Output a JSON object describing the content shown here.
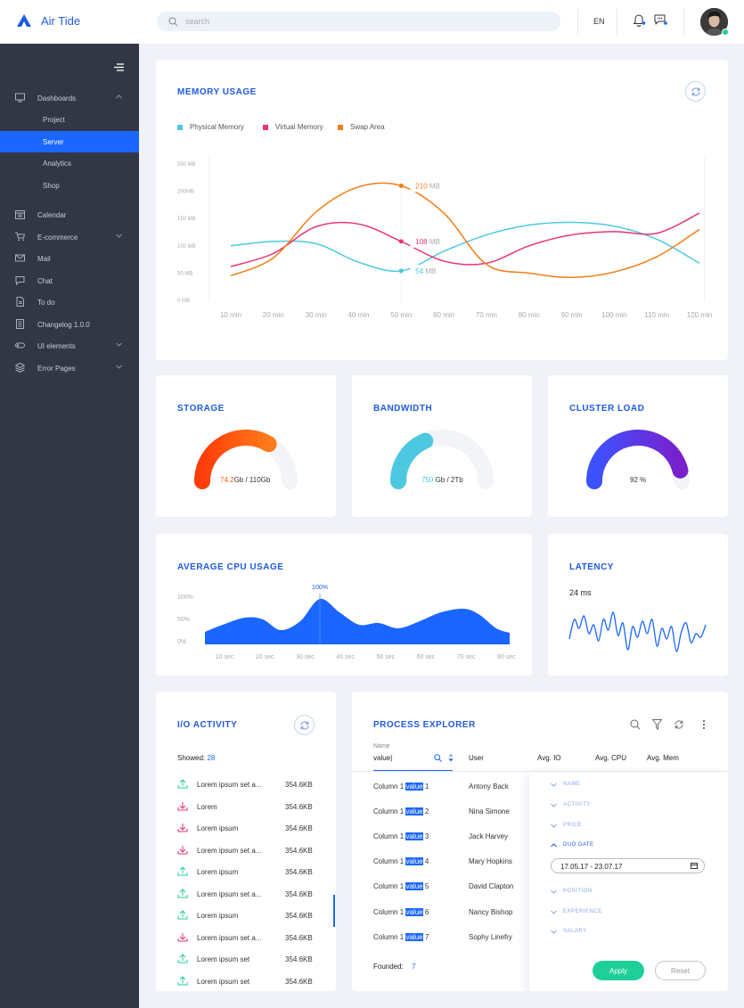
{
  "app": {
    "name": "Air Tide"
  },
  "header": {
    "search_placeholder": "search",
    "language": "EN"
  },
  "sidebar": {
    "items": [
      {
        "label": "Dashboards",
        "icon": "monitor-icon",
        "expandable": true
      },
      {
        "label": "Calendar",
        "icon": "calendar-icon"
      },
      {
        "label": "E-commerce",
        "icon": "cart-icon",
        "expandable": true
      },
      {
        "label": "Mail",
        "icon": "mail-icon"
      },
      {
        "label": "Chat",
        "icon": "chat-icon"
      },
      {
        "label": "To do",
        "icon": "document-icon"
      },
      {
        "label": "Changelog 1.0.0",
        "icon": "list-icon"
      },
      {
        "label": "UI elements",
        "icon": "toggle-icon",
        "expandable": true
      },
      {
        "label": "Error Pages",
        "icon": "layers-icon",
        "expandable": true
      }
    ],
    "dashboard_sub": [
      "Project",
      "Server",
      "Analytics",
      "Shop"
    ],
    "active_sub": "Server"
  },
  "memory": {
    "title": "MEMORY USAGE",
    "legend": [
      {
        "name": "Physical Memory",
        "color": "#4cc9e0"
      },
      {
        "name": "Virtual Memory",
        "color": "#e8337a"
      },
      {
        "name": "Swap Area",
        "color": "#f07f16"
      }
    ],
    "chart_data": {
      "type": "line",
      "x": [
        "10 min",
        "20 min",
        "30 min",
        "40 min",
        "50 min",
        "60 min",
        "70 min",
        "80 min",
        "90 min",
        "100 min",
        "110 min",
        "120 min"
      ],
      "y_ticks": [
        "250 MB",
        "200MB",
        "150 MB",
        "100 MB",
        "50 MB",
        "0 MB"
      ],
      "ylim": [
        0,
        250
      ],
      "series": [
        {
          "name": "Physical Memory",
          "color": "#4cc9e0",
          "values": [
            100,
            108,
            104,
            70,
            54,
            90,
            120,
            138,
            143,
            136,
            112,
            68
          ]
        },
        {
          "name": "Virtual Memory",
          "color": "#e8337a",
          "values": [
            62,
            86,
            135,
            140,
            108,
            72,
            68,
            100,
            120,
            126,
            123,
            160
          ]
        },
        {
          "name": "Swap Area",
          "color": "#f07f16",
          "values": [
            45,
            78,
            162,
            208,
            210,
            160,
            66,
            50,
            42,
            52,
            80,
            130
          ]
        }
      ],
      "annotations": [
        {
          "series": "Swap Area",
          "x": "50 min",
          "value": "210",
          "unit": "MB"
        },
        {
          "series": "Virtual Memory",
          "x": "50 min",
          "value": "108",
          "unit": "MB"
        },
        {
          "series": "Physical Memory",
          "x": "50 min",
          "value": "54",
          "unit": "MB"
        }
      ]
    }
  },
  "storage": {
    "title": "STORAGE",
    "value": "74.2",
    "rest": "Gb / 110Gb",
    "fraction": 0.675,
    "color_from": "#ff3d0a",
    "color_to": "#ff7a1a"
  },
  "bandwidth": {
    "title": "BANDWIDTH",
    "value": "750",
    "rest": " Gb / 2Tb",
    "fraction": 0.375,
    "color": "#4cc9e0"
  },
  "cluster": {
    "title": "CLUSTER LOAD",
    "label": "92 %",
    "fraction": 0.92,
    "color_from": "#3d52ff",
    "color_to": "#7a1fcc"
  },
  "cpu": {
    "title": "AVERAGE CPU USAGE",
    "peak_label": "100%",
    "chart_data": {
      "type": "area",
      "x": [
        "10 sec",
        "20 sec",
        "30 sec",
        "40 sec",
        "50 sec",
        "60 sec",
        "70 sec",
        "80 sec"
      ],
      "y_ticks": [
        "100%",
        "50%",
        "0%"
      ],
      "ylim": [
        0,
        100
      ],
      "color": "#1a66ff"
    }
  },
  "latency": {
    "title": "LATENCY",
    "value": "24 ms",
    "color": "#1a66ff"
  },
  "io": {
    "title": "I/O ACTIVITY",
    "showed_label": "Showed:",
    "showed_count": "28",
    "rows": [
      {
        "dir": "up",
        "name": "Lorem ipsum set a...",
        "size": "354.6KB"
      },
      {
        "dir": "down",
        "name": "Lorem",
        "size": "354.6KB"
      },
      {
        "dir": "down",
        "name": "Lorem ipsum",
        "size": "354.6KB"
      },
      {
        "dir": "down",
        "name": "Lorem ipsum set a...",
        "size": "354.6KB"
      },
      {
        "dir": "up",
        "name": "Lorem ipsum",
        "size": "354.6KB"
      },
      {
        "dir": "up",
        "name": "Lorem ipsum set a...",
        "size": "354.6KB"
      },
      {
        "dir": "up",
        "name": "Lorem ipsum",
        "size": "354.6KB"
      },
      {
        "dir": "down",
        "name": "Lorem ipsum set a...",
        "size": "354.6KB"
      },
      {
        "dir": "up",
        "name": "Lorem ipsum set",
        "size": "354.6KB"
      },
      {
        "dir": "up",
        "name": "Lorem ipsum set",
        "size": "354.6KB"
      }
    ]
  },
  "process": {
    "title": "PROCESS EXPLORER",
    "name_label": "Name",
    "name_value": "value|",
    "columns": [
      "User",
      "Avg. IO",
      "Avg. CPU",
      "Avg. Mem"
    ],
    "rows": [
      {
        "pre": "Column 1 ",
        "hl": "value",
        "num": " 1",
        "user": "Antony Back"
      },
      {
        "pre": "Column 1 ",
        "hl": "value",
        "num": " 2",
        "user": "Nina Simone"
      },
      {
        "pre": "Column 1 ",
        "hl": "value",
        "num": " 3",
        "user": "Jack Harvey"
      },
      {
        "pre": "Column 1 ",
        "hl": "value",
        "num": " 4",
        "user": "Mary Hopkins"
      },
      {
        "pre": "Column 1 ",
        "hl": "value",
        "num": " 5",
        "user": "David Clapton"
      },
      {
        "pre": "Column 1 ",
        "hl": "value",
        "num": " 6",
        "user": "Nancy Bishop"
      },
      {
        "pre": "Column 1 ",
        "hl": "value",
        "num": " 7",
        "user": "Sophy Linefry"
      }
    ],
    "founded_label": "Founded:",
    "founded_count": "7",
    "filters": [
      "NAME",
      "ACTIVITY",
      "PRICE",
      "DUO DATE",
      "POSITION",
      "EXPERIENCE",
      "SALARY"
    ],
    "date_range": "17.05.17 - 23.07.17",
    "apply_label": "Apply",
    "reset_label": "Reset"
  },
  "colors": {
    "accent": "#1a66ff",
    "title": "#1f5bdc",
    "sidebar": "#313744",
    "apply": "#1fcf9a"
  }
}
